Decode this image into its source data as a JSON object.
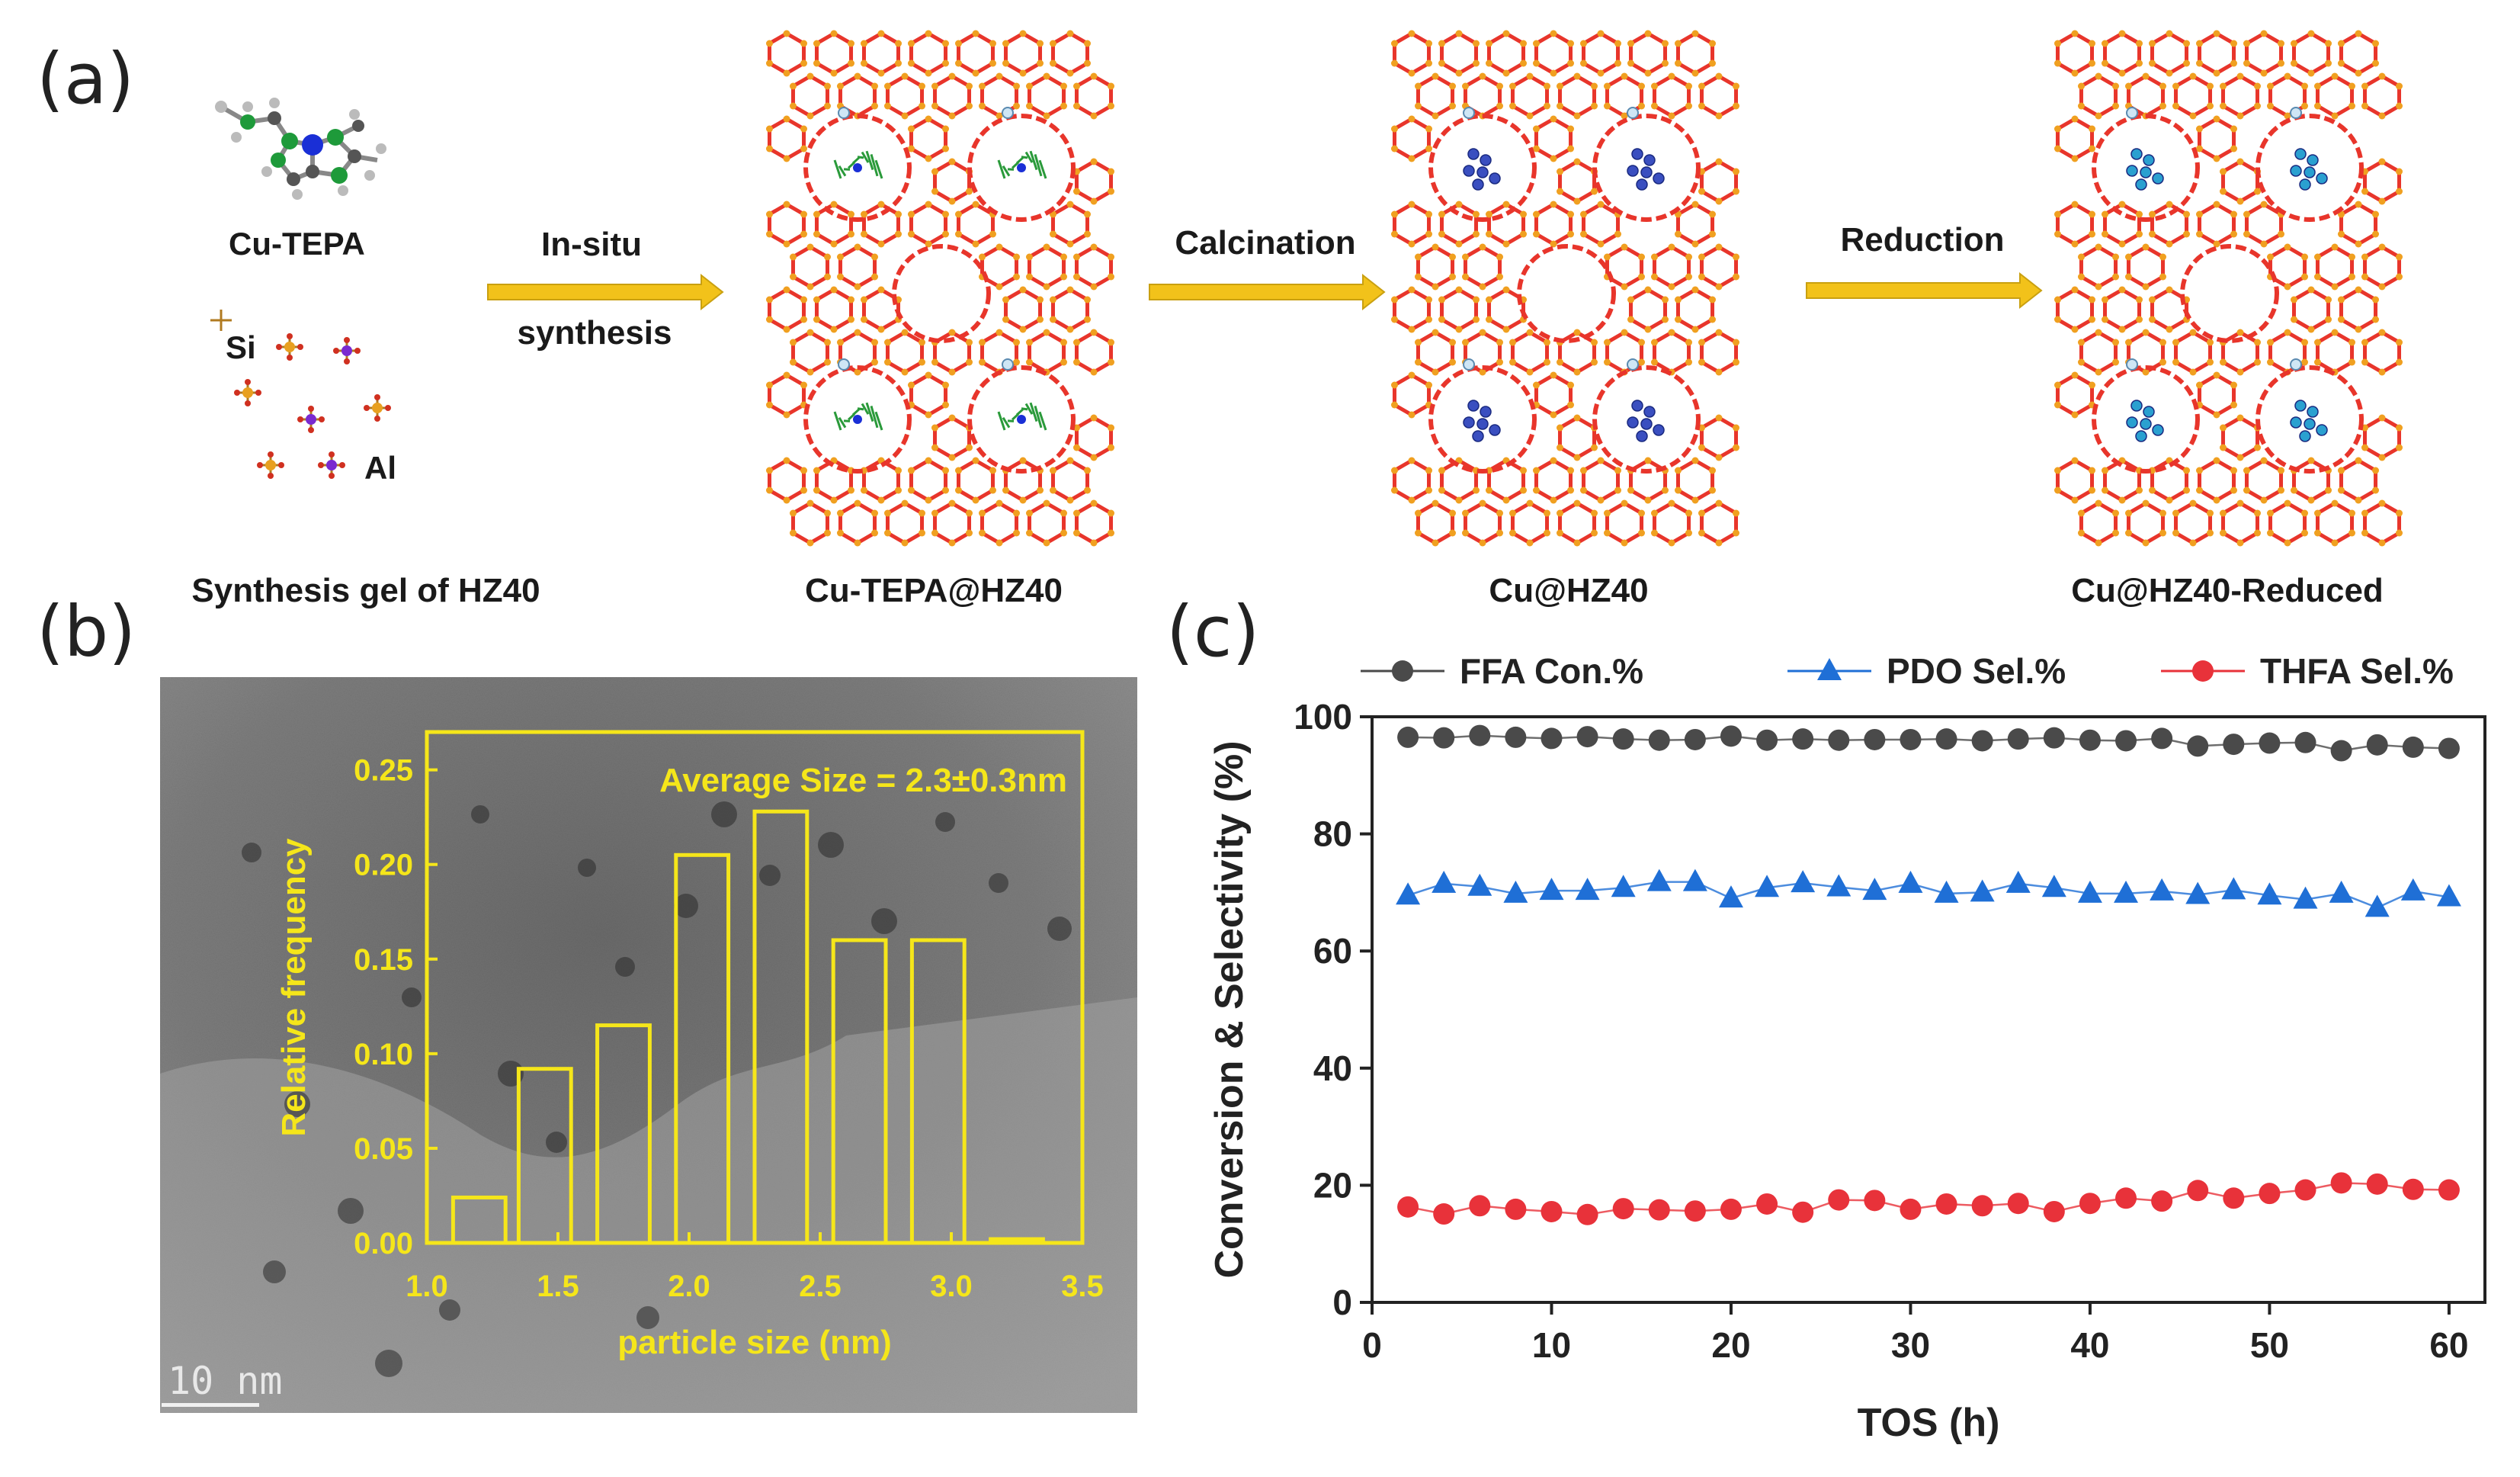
{
  "panel_a": {
    "label": "(a)",
    "molecule_label": "Cu-TEPA",
    "si_label": "Si",
    "al_label": "Al",
    "captions": [
      "Synthesis gel of HZ40",
      "Cu-TEPA@HZ40",
      "Cu@HZ40",
      "Cu@HZ40-Reduced"
    ],
    "arrows": [
      {
        "top": "In-situ",
        "bottom": "synthesis"
      },
      {
        "top": "Calcination",
        "bottom": ""
      },
      {
        "top": "Reduction",
        "bottom": ""
      }
    ],
    "colors": {
      "framework": "#e8352b",
      "node": "#f0a020",
      "arrow": "#f2c21a",
      "cu": "#3a4fc0",
      "cu_reduced": "#2aa0d0",
      "tepa": "#2a9a3a"
    }
  },
  "panel_b": {
    "label": "(b)",
    "scale_bar": "10 nm",
    "inset_color": "#f5e61a",
    "chart_data": {
      "type": "bar",
      "title": "Average Size = 2.3±0.3nm",
      "xlabel": "particle size (nm)",
      "ylabel": "Relative frequency",
      "categories": [
        "1.2",
        "1.45",
        "1.75",
        "2.05",
        "2.35",
        "2.65",
        "2.95",
        "3.25"
      ],
      "x": [
        1.2,
        1.45,
        1.75,
        2.05,
        2.35,
        2.65,
        2.95,
        3.25
      ],
      "values": [
        0.024,
        0.092,
        0.115,
        0.205,
        0.228,
        0.16,
        0.16,
        0.002
      ],
      "xlim": [
        1.0,
        3.5
      ],
      "ylim": [
        0,
        0.27
      ],
      "xticks": [
        "1.0",
        "1.5",
        "2.0",
        "2.5",
        "3.0",
        "3.5"
      ],
      "yticks": [
        "0.00",
        "0.05",
        "0.10",
        "0.15",
        "0.20",
        "0.25"
      ]
    }
  },
  "panel_c": {
    "label": "(c)",
    "chart_data": {
      "type": "line",
      "xlabel": "TOS (h)",
      "ylabel": "Conversion & Selectivity (%)",
      "xlim": [
        0,
        62
      ],
      "ylim": [
        0,
        100
      ],
      "xticks": [
        "0",
        "10",
        "20",
        "30",
        "40",
        "50",
        "60"
      ],
      "yticks": [
        "0",
        "20",
        "40",
        "60",
        "80",
        "100"
      ],
      "x": [
        2,
        4,
        6,
        8,
        10,
        12,
        14,
        16,
        18,
        20,
        22,
        24,
        26,
        28,
        30,
        32,
        34,
        36,
        38,
        40,
        42,
        44,
        46,
        48,
        50,
        52,
        54,
        56,
        58,
        60
      ],
      "series": [
        {
          "name": "FFA Con.%",
          "color": "#4a4a4a",
          "marker": "circle",
          "values": [
            96.5,
            96.4,
            96.8,
            96.5,
            96.3,
            96.6,
            96.2,
            96.0,
            96.1,
            96.7,
            96.0,
            96.2,
            96.0,
            96.1,
            96.1,
            96.2,
            95.9,
            96.2,
            96.4,
            96.0,
            95.9,
            96.3,
            95.0,
            95.3,
            95.5,
            95.6,
            94.2,
            95.2,
            94.8,
            94.6
          ]
        },
        {
          "name": "PDO Sel.%",
          "color": "#1f6fd6",
          "marker": "triangle",
          "values": [
            69.5,
            71.5,
            71.0,
            69.8,
            70.3,
            70.3,
            70.8,
            71.8,
            71.8,
            69.0,
            70.8,
            71.6,
            70.9,
            70.3,
            71.5,
            69.8,
            70.0,
            71.5,
            70.8,
            69.8,
            69.8,
            70.2,
            69.6,
            70.4,
            69.5,
            68.8,
            69.8,
            67.4,
            70.2,
            69.2
          ]
        },
        {
          "name": "THFA Sel.%",
          "color": "#e8323a",
          "marker": "circle",
          "values": [
            16.3,
            15.1,
            16.5,
            15.9,
            15.5,
            15.0,
            16.0,
            15.8,
            15.6,
            15.9,
            16.8,
            15.4,
            17.5,
            17.4,
            15.9,
            16.8,
            16.5,
            16.9,
            15.5,
            16.9,
            17.8,
            17.3,
            19.1,
            17.8,
            18.6,
            19.2,
            20.4,
            20.2,
            19.3,
            19.2
          ]
        }
      ]
    }
  }
}
